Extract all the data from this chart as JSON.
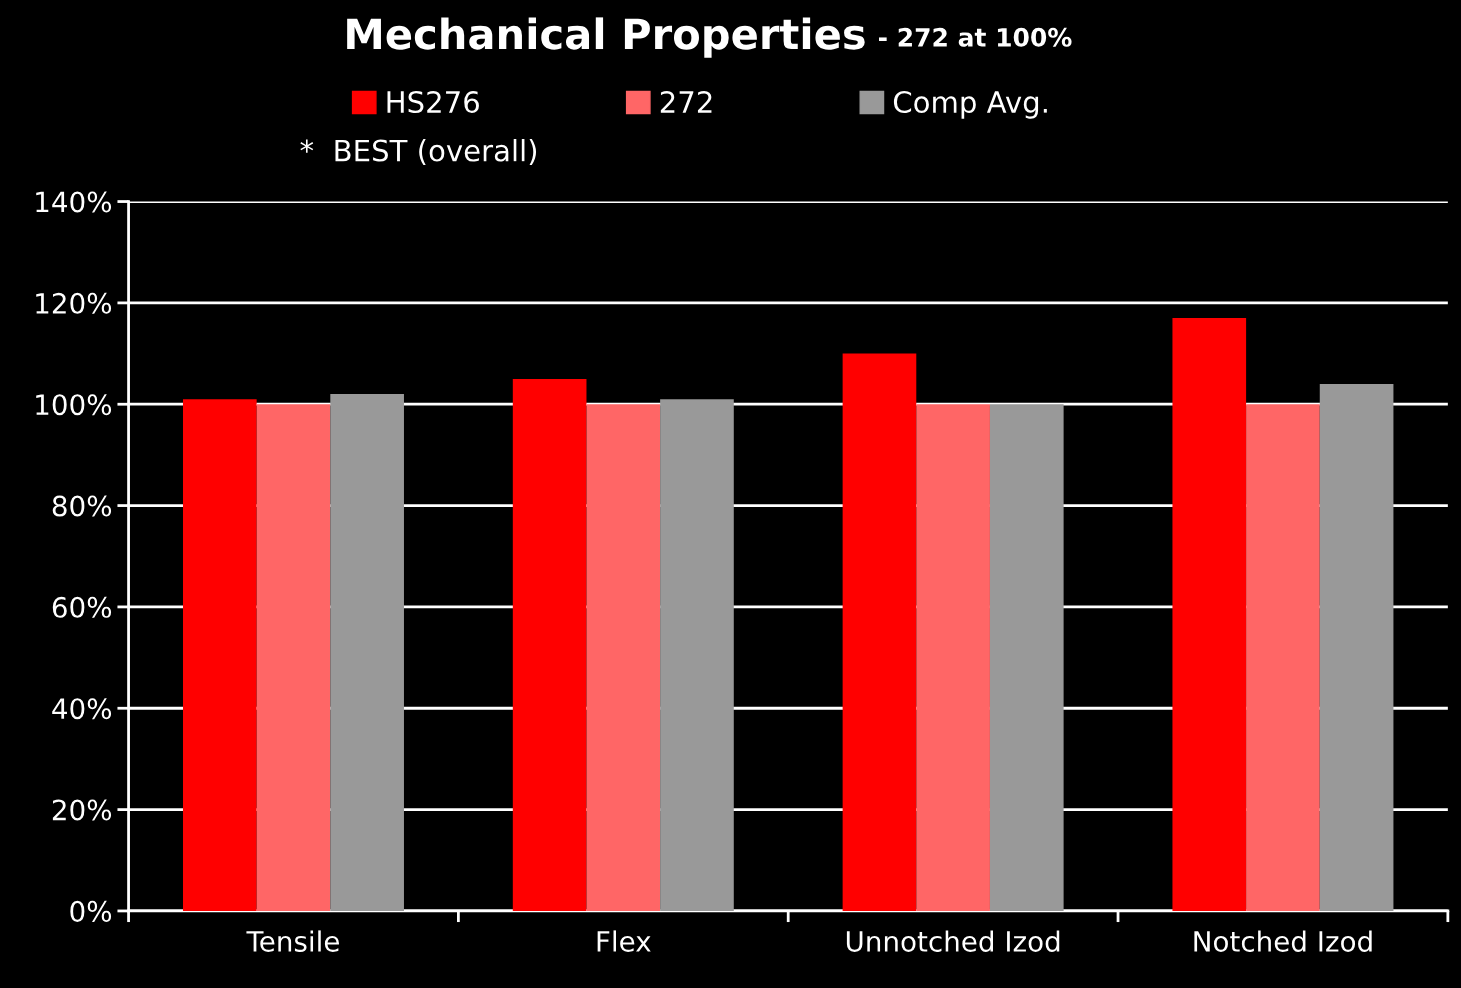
{
  "chart_data": {
    "type": "bar",
    "title": "Mechanical Properties",
    "subtitle": "- 272 at 100%",
    "categories": [
      "Tensile",
      "Flex",
      "Unnotched Izod",
      "Notched Izod"
    ],
    "series": [
      {
        "name": "HS276",
        "color": "#ff0000",
        "values": [
          101,
          105,
          110,
          117
        ]
      },
      {
        "name": "272",
        "color": "#ff6666",
        "values": [
          100,
          100,
          100,
          100
        ]
      },
      {
        "name": "Comp Avg.",
        "color": "#999999",
        "values": [
          102,
          101,
          100,
          104
        ]
      }
    ],
    "ylim": [
      0,
      140
    ],
    "yticks": [
      {
        "value": 0,
        "label": "0%"
      },
      {
        "value": 20,
        "label": "20%"
      },
      {
        "value": 40,
        "label": "40%"
      },
      {
        "value": 60,
        "label": "60%"
      },
      {
        "value": 80,
        "label": "80%"
      },
      {
        "value": 100,
        "label": "100%"
      },
      {
        "value": 120,
        "label": "120%"
      },
      {
        "value": 140,
        "label": "140%"
      }
    ],
    "grid": "y",
    "legend": "top",
    "annotations": [
      "*  BEST (overall)"
    ]
  }
}
